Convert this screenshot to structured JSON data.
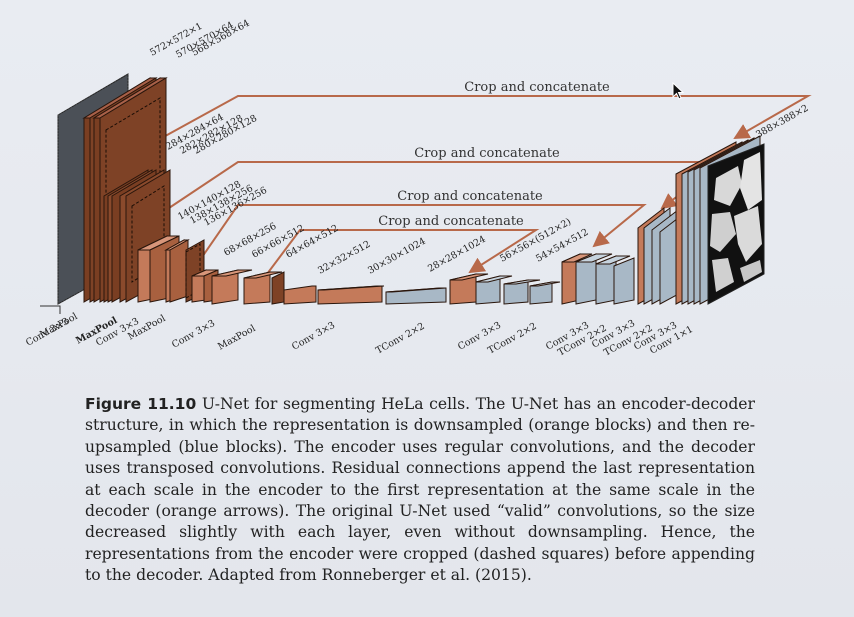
{
  "diagram": {
    "crop_labels": [
      "Crop and concatenate",
      "Crop and concatenate",
      "Crop and concatenate",
      "Crop and concatenate"
    ],
    "dims": {
      "d1": "572×572×1",
      "d2": "570×570×64",
      "d3": "568×568×64",
      "d4": "284×284×64",
      "d5": "282×282×128",
      "d6": "280×280×128",
      "d7": "140×140×128",
      "d8": "138×138×256",
      "d9": "136×136×256",
      "d10": "68×68×256",
      "d11": "66×66×512",
      "d12": "64×64×512",
      "d13": "32×32×512",
      "d14": "30×30×1024",
      "d15": "28×28×1024",
      "d16": "56×56×(512×2)",
      "d17": "54×54×512",
      "d18": "388×388×2"
    },
    "ops": {
      "o1": "Conv 3×3",
      "o2": "MaxPool",
      "o3": "MaxPool",
      "o4": "Conv 3×3",
      "o5": "MaxPool",
      "o6": "Conv 3×3",
      "o7": "MaxPool",
      "o8": "Conv 3×3",
      "o9": "TConv 2×2",
      "o10": "Conv 3×3",
      "o11": "TConv 2×2",
      "o12": "Conv 3×3",
      "o13": "TConv 2×2",
      "o14": "Conv 3×3",
      "o15": "TConv 2×2",
      "o16": "Conv 3×3",
      "o17": "Conv 1×1"
    }
  },
  "caption": {
    "label": "Figure 11.10",
    "text": "U-Net for segmenting HeLa cells. The U-Net has an encoder-decoder structure, in which the representation is downsampled (orange blocks) and then re-upsampled (blue blocks). The encoder uses regular convolutions, and the decoder uses transposed convolutions. Residual connections append the last representation at each scale in the encoder to the first representation at the same scale in the decoder (orange arrows). The original U-Net used “valid” convolutions, so the size decreased slightly with each layer, even without downsampling. Hence, the representations from the encoder were cropped (dashed squares) before appending to the decoder. Adapted from Ronneberger et al. (2015)."
  },
  "colors": {
    "encoder": "#c47a5a",
    "encoder_dark": "#7a3e22",
    "decoder": "#a8b8c6",
    "arrow": "#b8694a"
  }
}
